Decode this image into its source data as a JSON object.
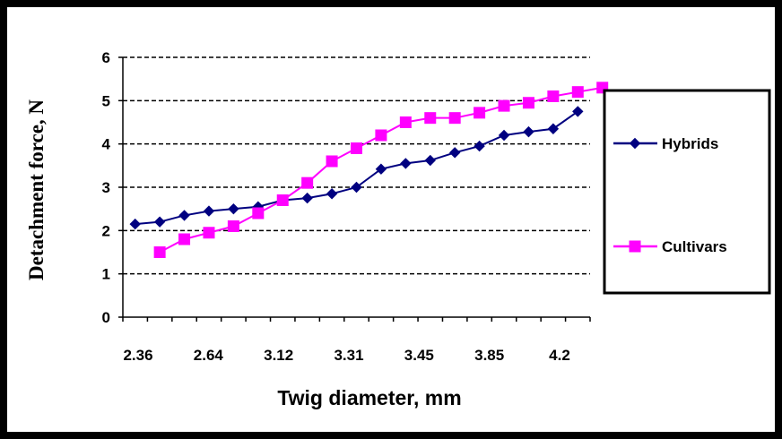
{
  "chart_data": {
    "type": "line",
    "xlabel": "Twig diameter, mm",
    "ylabel": "Detachment force, N",
    "ylim": [
      0,
      6
    ],
    "yticks": [
      0,
      1,
      2,
      3,
      4,
      5,
      6
    ],
    "x_tick_labels": [
      "2.36",
      "2.64",
      "3.12",
      "3.31",
      "3.45",
      "3.85",
      "4.2"
    ],
    "grid": "horizontal dashed",
    "legend_position": "right",
    "series": [
      {
        "name": "Hybrids",
        "color": "#000080",
        "marker": "diamond",
        "values": [
          2.15,
          2.2,
          2.35,
          2.45,
          2.5,
          2.55,
          2.7,
          2.75,
          2.85,
          3.0,
          3.42,
          3.55,
          3.62,
          3.8,
          3.95,
          4.2,
          4.28,
          4.35,
          4.75
        ]
      },
      {
        "name": "Cultivars",
        "color": "#FF00FF",
        "marker": "square",
        "values": [
          1.5,
          1.8,
          1.95,
          2.1,
          2.4,
          2.7,
          3.1,
          3.6,
          3.9,
          4.2,
          4.5,
          4.6,
          4.6,
          4.72,
          4.88,
          4.95,
          5.1,
          5.2,
          5.3
        ]
      }
    ]
  }
}
